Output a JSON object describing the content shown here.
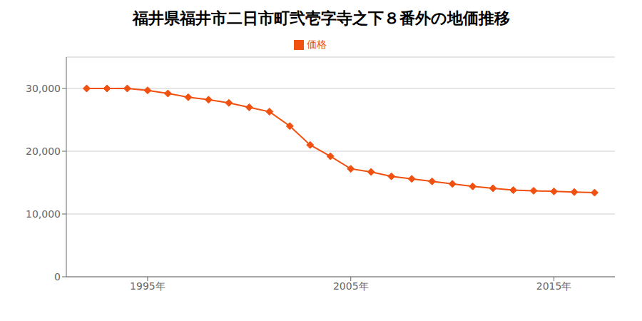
{
  "chart_data": {
    "type": "line",
    "title": "福井県福井市二日市町弐壱字寺之下８番外の地価推移",
    "x": [
      1992,
      1993,
      1994,
      1995,
      1996,
      1997,
      1998,
      1999,
      2000,
      2001,
      2002,
      2003,
      2004,
      2005,
      2006,
      2007,
      2008,
      2009,
      2010,
      2011,
      2012,
      2013,
      2014,
      2015,
      2016,
      2017
    ],
    "series": [
      {
        "name": "価格",
        "color": "#f05010",
        "marker": "diamond",
        "values": [
          30000,
          30000,
          30000,
          29700,
          29200,
          28600,
          28200,
          27700,
          27000,
          26300,
          24000,
          21000,
          19200,
          17200,
          16700,
          16000,
          15600,
          15200,
          14800,
          14400,
          14100,
          13800,
          13700,
          13600,
          13500,
          13400
        ]
      }
    ],
    "xlim": [
      1991,
      2018
    ],
    "xticks": [
      {
        "value": 1995,
        "label": "1995年"
      },
      {
        "value": 2005,
        "label": "2005年"
      },
      {
        "value": 2015,
        "label": "2015年"
      }
    ],
    "ylim": [
      0,
      35000
    ],
    "yticks": [
      0,
      {
        "value": 10000,
        "label": "10,000"
      },
      {
        "value": 20000,
        "label": "20,000"
      },
      {
        "value": 30000,
        "label": "30,000"
      }
    ],
    "grid": true,
    "legend": "top"
  }
}
